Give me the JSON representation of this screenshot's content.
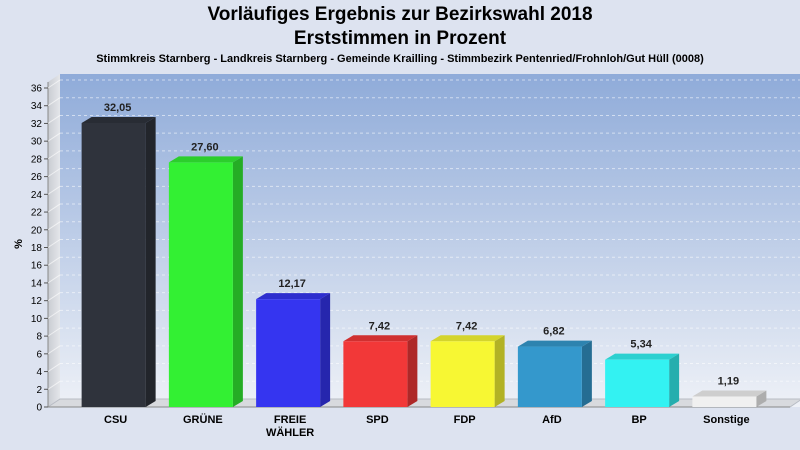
{
  "chart_data": {
    "type": "bar",
    "title": "Vorläufiges Ergebnis zur Bezirkswahl 2018",
    "subtitle": "Erststimmen in Prozent",
    "caption": "Stimmkreis Starnberg - Landkreis Starnberg - Gemeinde Krailling - Stimmbezirk Pentenried/Frohnloh/Gut Hüll (0008)",
    "ylabel": "%",
    "ylim": [
      0,
      36
    ],
    "yticks": [
      0,
      2,
      4,
      6,
      8,
      10,
      12,
      14,
      16,
      18,
      20,
      22,
      24,
      26,
      28,
      30,
      32,
      34,
      36
    ],
    "grid": true,
    "categories": [
      "CSU",
      "GRÜNE",
      "FREIE WÄHLER",
      "SPD",
      "FDP",
      "AfD",
      "BP",
      "Sonstige"
    ],
    "category_lines": [
      [
        "CSU"
      ],
      [
        "GRÜNE"
      ],
      [
        "FREIE",
        "WÄHLER"
      ],
      [
        "SPD"
      ],
      [
        "FDP"
      ],
      [
        "AfD"
      ],
      [
        "BP"
      ],
      [
        "Sonstige"
      ]
    ],
    "values": [
      32.05,
      27.6,
      12.17,
      7.42,
      7.42,
      6.82,
      5.34,
      1.19
    ],
    "value_labels": [
      "32,05",
      "27,60",
      "12,17",
      "7,42",
      "7,42",
      "6,82",
      "5,34",
      "1,19"
    ],
    "colors": [
      "#2f333c",
      "#33f033",
      "#3535f0",
      "#f23838",
      "#f7f733",
      "#3498cc",
      "#33f2f2",
      "#f0f0f0"
    ]
  }
}
